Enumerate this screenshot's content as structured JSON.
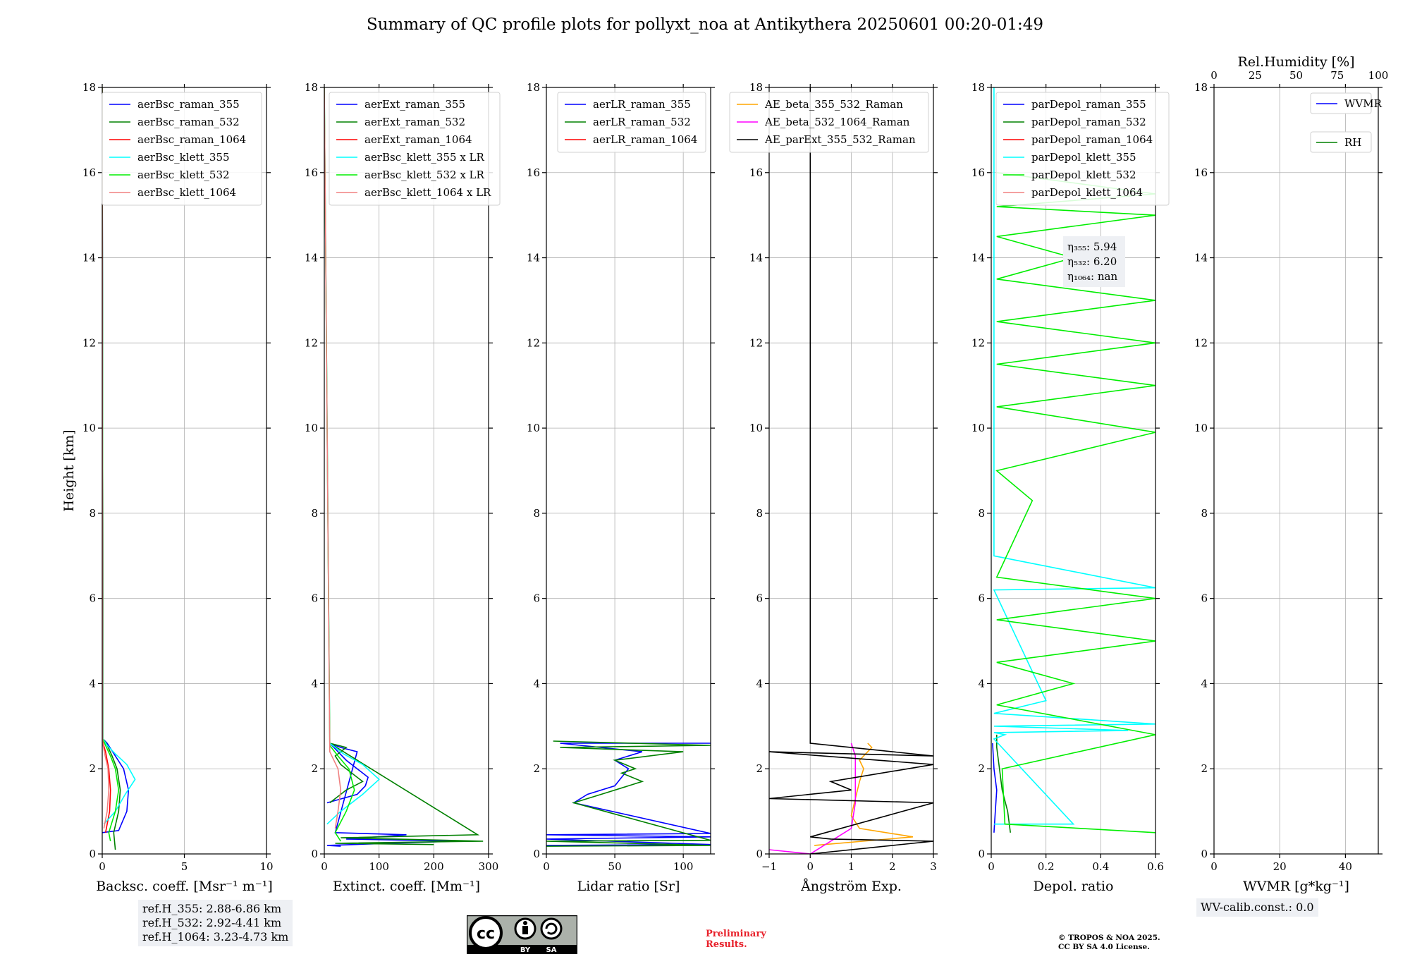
{
  "title": "Summary of QC profile plots for pollyxt_noa at Antikythera 20250601 00:20-01:49",
  "refheights": [
    "ref.H_355: 2.88-6.86 km",
    "ref.H_532: 2.92-4.41 km",
    "ref.H_1064: 3.23-4.73 km"
  ],
  "wv_calib": "WV-calib.const.: 0.0",
  "preliminary": [
    "Preliminary",
    "Results."
  ],
  "copyright": [
    "© TROPOS & NOA 2025.",
    "CC BY SA 4.0 License."
  ],
  "license_icon": "cc-by-sa-icon",
  "license_text": [
    "BY",
    "SA"
  ],
  "chart_data": [
    {
      "type": "line",
      "ylabel": "Height [km]",
      "xlabel": "Backsc. coeff. [Msr⁻¹ m⁻¹]",
      "xlim": [
        0,
        10
      ],
      "ylim": [
        0,
        18
      ],
      "xticks": [
        0,
        5,
        10
      ],
      "yticks": [
        0,
        2,
        4,
        6,
        8,
        10,
        12,
        14,
        16,
        18
      ],
      "grid": true,
      "legend": "top-right",
      "series": [
        {
          "name": "aerBsc_raman_355",
          "color": "#0000ff",
          "x": [
            0,
            1.0,
            1.5,
            1.6,
            1.3,
            0.8,
            0.3,
            0.05,
            0
          ],
          "y": [
            0.5,
            0.55,
            1.0,
            1.5,
            2.0,
            2.3,
            2.6,
            2.7,
            18
          ]
        },
        {
          "name": "aerBsc_raman_532",
          "color": "#008000",
          "x": [
            0.8,
            0.7,
            1.0,
            1.1,
            0.9,
            0.6,
            0.25,
            0.05,
            0
          ],
          "y": [
            0.1,
            0.5,
            1.0,
            1.5,
            2.0,
            2.3,
            2.6,
            2.7,
            18
          ]
        },
        {
          "name": "aerBsc_raman_1064",
          "color": "#ff0000",
          "x": [
            0.2,
            0.45,
            0.5,
            0.4,
            0.2,
            0.05,
            0
          ],
          "y": [
            0.5,
            1.0,
            1.5,
            2.0,
            2.4,
            2.6,
            18
          ]
        },
        {
          "name": "aerBsc_klett_355",
          "color": "#00ffff",
          "x": [
            0.1,
            0.8,
            1.4,
            2.0,
            1.5,
            0.8,
            0.3,
            0.05,
            0
          ],
          "y": [
            0.7,
            1.0,
            1.4,
            1.75,
            2.1,
            2.35,
            2.55,
            2.7,
            18
          ]
        },
        {
          "name": "aerBsc_klett_532",
          "color": "#00ee00",
          "x": [
            0.5,
            0.4,
            0.8,
            1.0,
            0.8,
            0.5,
            0.2,
            0.04,
            0
          ],
          "y": [
            0.3,
            0.5,
            1.0,
            1.5,
            2.0,
            2.3,
            2.55,
            2.7,
            18
          ]
        },
        {
          "name": "aerBsc_klett_1064",
          "color": "#f08080",
          "x": [
            0.1,
            0.3,
            0.4,
            0.35,
            0.15,
            0.03,
            0
          ],
          "y": [
            0.6,
            1.0,
            1.5,
            2.0,
            2.35,
            2.6,
            18
          ]
        }
      ]
    },
    {
      "type": "line",
      "xlabel": "Extinct. coeff. [Mm⁻¹]",
      "xlim": [
        0,
        300
      ],
      "ylim": [
        0,
        18
      ],
      "xticks": [
        0,
        100,
        200,
        300
      ],
      "yticks": [
        0,
        2,
        4,
        6,
        8,
        10,
        12,
        14,
        16,
        18
      ],
      "grid": true,
      "legend": "top-left",
      "series": [
        {
          "name": "aerExt_raman_355",
          "color": "#0000ff",
          "x": [
            5,
            60,
            75,
            80,
            60,
            40,
            10,
            30,
            60,
            20,
            150,
            40,
            240,
            5,
            30
          ],
          "y": [
            1.2,
            1.4,
            1.6,
            1.8,
            2.0,
            2.2,
            2.6,
            2.5,
            2.4,
            0.5,
            0.45,
            0.35,
            0.3,
            0.2,
            0.18
          ]
        },
        {
          "name": "aerExt_raman_532",
          "color": "#008000",
          "x": [
            10,
            40,
            70,
            50,
            30,
            20,
            40,
            10,
            280,
            30,
            290,
            20,
            200
          ],
          "y": [
            1.2,
            1.5,
            1.7,
            1.9,
            2.1,
            2.3,
            2.5,
            2.6,
            0.45,
            0.38,
            0.3,
            0.25,
            0.22
          ]
        },
        {
          "name": "aerExt_raman_1064",
          "color": "#ff0000",
          "x": [],
          "y": []
        },
        {
          "name": "aerBsc_klett_355 x LR",
          "color": "#00ffff",
          "x": [
            5,
            30,
            70,
            100,
            70,
            35,
            10,
            0
          ],
          "y": [
            0.7,
            1.0,
            1.4,
            1.75,
            2.1,
            2.35,
            2.6,
            18
          ]
        },
        {
          "name": "aerBsc_klett_532 x LR",
          "color": "#00ee00",
          "x": [
            30,
            20,
            40,
            55,
            45,
            25,
            10,
            0
          ],
          "y": [
            0.3,
            0.5,
            1.0,
            1.5,
            2.0,
            2.3,
            2.55,
            18
          ]
        },
        {
          "name": "aerBsc_klett_1064 x LR",
          "color": "#f08080",
          "x": [
            20,
            25,
            30,
            25,
            10,
            0
          ],
          "y": [
            0.6,
            1.0,
            1.5,
            2.0,
            2.4,
            18
          ]
        }
      ]
    },
    {
      "type": "line",
      "xlabel": "Lidar ratio [Sr]",
      "xlim": [
        0,
        120
      ],
      "ylim": [
        0,
        18
      ],
      "xticks": [
        0,
        50,
        100
      ],
      "yticks": [
        0,
        2,
        4,
        6,
        8,
        10,
        12,
        14,
        16,
        18
      ],
      "grid": true,
      "legend": "top-right",
      "series": [
        {
          "name": "aerLR_raman_355",
          "color": "#0000ff",
          "x": [
            0,
            120,
            0,
            120,
            0,
            120,
            20,
            30,
            50,
            55,
            60,
            50,
            70,
            10,
            120
          ],
          "y": [
            0.2,
            0.22,
            0.35,
            0.4,
            0.45,
            0.48,
            1.2,
            1.4,
            1.6,
            1.8,
            2.0,
            2.2,
            2.4,
            2.6,
            2.6
          ]
        },
        {
          "name": "aerLR_raman_532",
          "color": "#008000",
          "x": [
            0,
            120,
            0,
            120,
            20,
            40,
            60,
            70,
            55,
            65,
            50,
            100,
            10,
            120,
            5
          ],
          "y": [
            0.18,
            0.2,
            0.3,
            0.32,
            1.2,
            1.4,
            1.6,
            1.7,
            1.9,
            2.0,
            2.2,
            2.4,
            2.5,
            2.55,
            2.65
          ]
        },
        {
          "name": "aerLR_raman_1064",
          "color": "#ff0000",
          "x": [],
          "y": []
        }
      ]
    },
    {
      "type": "line",
      "xlabel": "Ångström Exp.",
      "xlim": [
        -1,
        3
      ],
      "ylim": [
        0,
        18
      ],
      "xticks": [
        -1,
        0,
        1,
        2,
        3
      ],
      "yticks": [
        0,
        2,
        4,
        6,
        8,
        10,
        12,
        14,
        16,
        18
      ],
      "grid": true,
      "legend": "top-right",
      "series": [
        {
          "name": "AE_beta_355_532_Raman",
          "color": "#ffa500",
          "x": [
            0.1,
            2.5,
            1.2,
            1.0,
            1.1,
            1.2,
            1.3,
            1.2,
            1.4,
            1.5,
            1.4
          ],
          "y": [
            0.2,
            0.4,
            0.6,
            0.9,
            1.3,
            1.7,
            2.0,
            2.2,
            2.4,
            2.5,
            2.6
          ]
        },
        {
          "name": "AE_beta_532_1064_Raman",
          "color": "#ff00ff",
          "x": [
            -1,
            0,
            1.0,
            1.1,
            1.1,
            1.1,
            1.0
          ],
          "y": [
            0.1,
            0,
            0.6,
            1.2,
            1.8,
            2.3,
            2.6
          ]
        },
        {
          "name": "AE_parExt_355_532_Raman",
          "color": "#000000",
          "x": [
            0,
            3,
            0.5,
            0,
            3,
            -1,
            1.0,
            0.5,
            3,
            -1,
            3,
            0,
            0,
            0
          ],
          "y": [
            0,
            0.3,
            0.35,
            0.4,
            1.2,
            1.3,
            1.5,
            1.7,
            2.1,
            2.4,
            2.3,
            2.6,
            2.6,
            18
          ]
        }
      ]
    },
    {
      "type": "line",
      "xlabel": "Depol. ratio",
      "xlim": [
        0,
        0.6
      ],
      "ylim": [
        0,
        18
      ],
      "xticks": [
        0,
        0.2,
        0.4,
        0.6
      ],
      "yticks": [
        0,
        2,
        4,
        6,
        8,
        10,
        12,
        14,
        16,
        18
      ],
      "grid": true,
      "legend": "top-left",
      "annotation": [
        "η₃₅₅: 5.94",
        "η₅₃₂: 6.20",
        "η₁₀₆₄: nan"
      ],
      "series": [
        {
          "name": "parDepol_raman_355",
          "color": "#0000ff",
          "x": [
            0.01,
            0.015,
            0.02,
            0.01,
            0.005
          ],
          "y": [
            0.5,
            1.0,
            1.5,
            2.0,
            2.6
          ]
        },
        {
          "name": "parDepol_raman_532",
          "color": "#008000",
          "x": [
            0.07,
            0.06,
            0.04,
            0.03,
            0.02,
            0.02
          ],
          "y": [
            0.5,
            1.0,
            1.5,
            2.0,
            2.5,
            2.8
          ]
        },
        {
          "name": "parDepol_raman_1064",
          "color": "#ff0000",
          "x": [],
          "y": []
        },
        {
          "name": "parDepol_klett_355",
          "color": "#00ffff",
          "x": [
            0.01,
            0.3,
            0.01,
            0.05,
            0.01,
            0.5,
            0.01,
            0.6,
            0.01,
            0.2,
            0.01,
            0.6,
            0.01,
            0.01
          ],
          "y": [
            0.7,
            0.7,
            2.7,
            2.8,
            2.85,
            2.9,
            3.0,
            3.05,
            3.3,
            3.6,
            6.2,
            6.25,
            7.0,
            18
          ]
        },
        {
          "name": "parDepol_klett_532",
          "color": "#00ee00",
          "x": [
            0.6,
            0.05,
            0.04,
            0.6,
            0.02,
            0.3,
            0.02,
            0.6,
            0.02,
            0.6,
            0.02,
            0.15,
            0.02,
            0.6,
            0.02,
            0.6,
            0.02,
            0.6,
            0.02,
            0.6,
            0.02,
            0.3,
            0.02,
            0.6,
            0.02,
            0.6,
            0.02
          ],
          "y": [
            0.5,
            0.7,
            2.0,
            2.8,
            3.5,
            4.0,
            4.5,
            5.0,
            5.5,
            6.0,
            6.5,
            8.3,
            9.0,
            9.9,
            10.5,
            11.0,
            11.5,
            12.0,
            12.5,
            13.0,
            13.5,
            14.0,
            14.5,
            15.0,
            15.2,
            15.5,
            16.0
          ]
        },
        {
          "name": "parDepol_klett_1064",
          "color": "#f08080",
          "x": [],
          "y": []
        }
      ]
    },
    {
      "type": "line",
      "xlabel": "WVMR [g*kg⁻¹]",
      "x2label": "Rel.Humidity [%]",
      "xlim": [
        0,
        50
      ],
      "x2lim": [
        0,
        100
      ],
      "ylim": [
        0,
        18
      ],
      "xticks": [
        0,
        20,
        40
      ],
      "x2ticks": [
        0,
        25,
        50,
        75,
        100
      ],
      "yticks": [
        0,
        2,
        4,
        6,
        8,
        10,
        12,
        14,
        16,
        18
      ],
      "grid": true,
      "legend": "top-right",
      "series": [
        {
          "name": "WVMR",
          "color": "#0000ff",
          "x": [],
          "y": []
        },
        {
          "name": "RH",
          "color": "#008000",
          "x": [],
          "y": []
        }
      ]
    }
  ]
}
